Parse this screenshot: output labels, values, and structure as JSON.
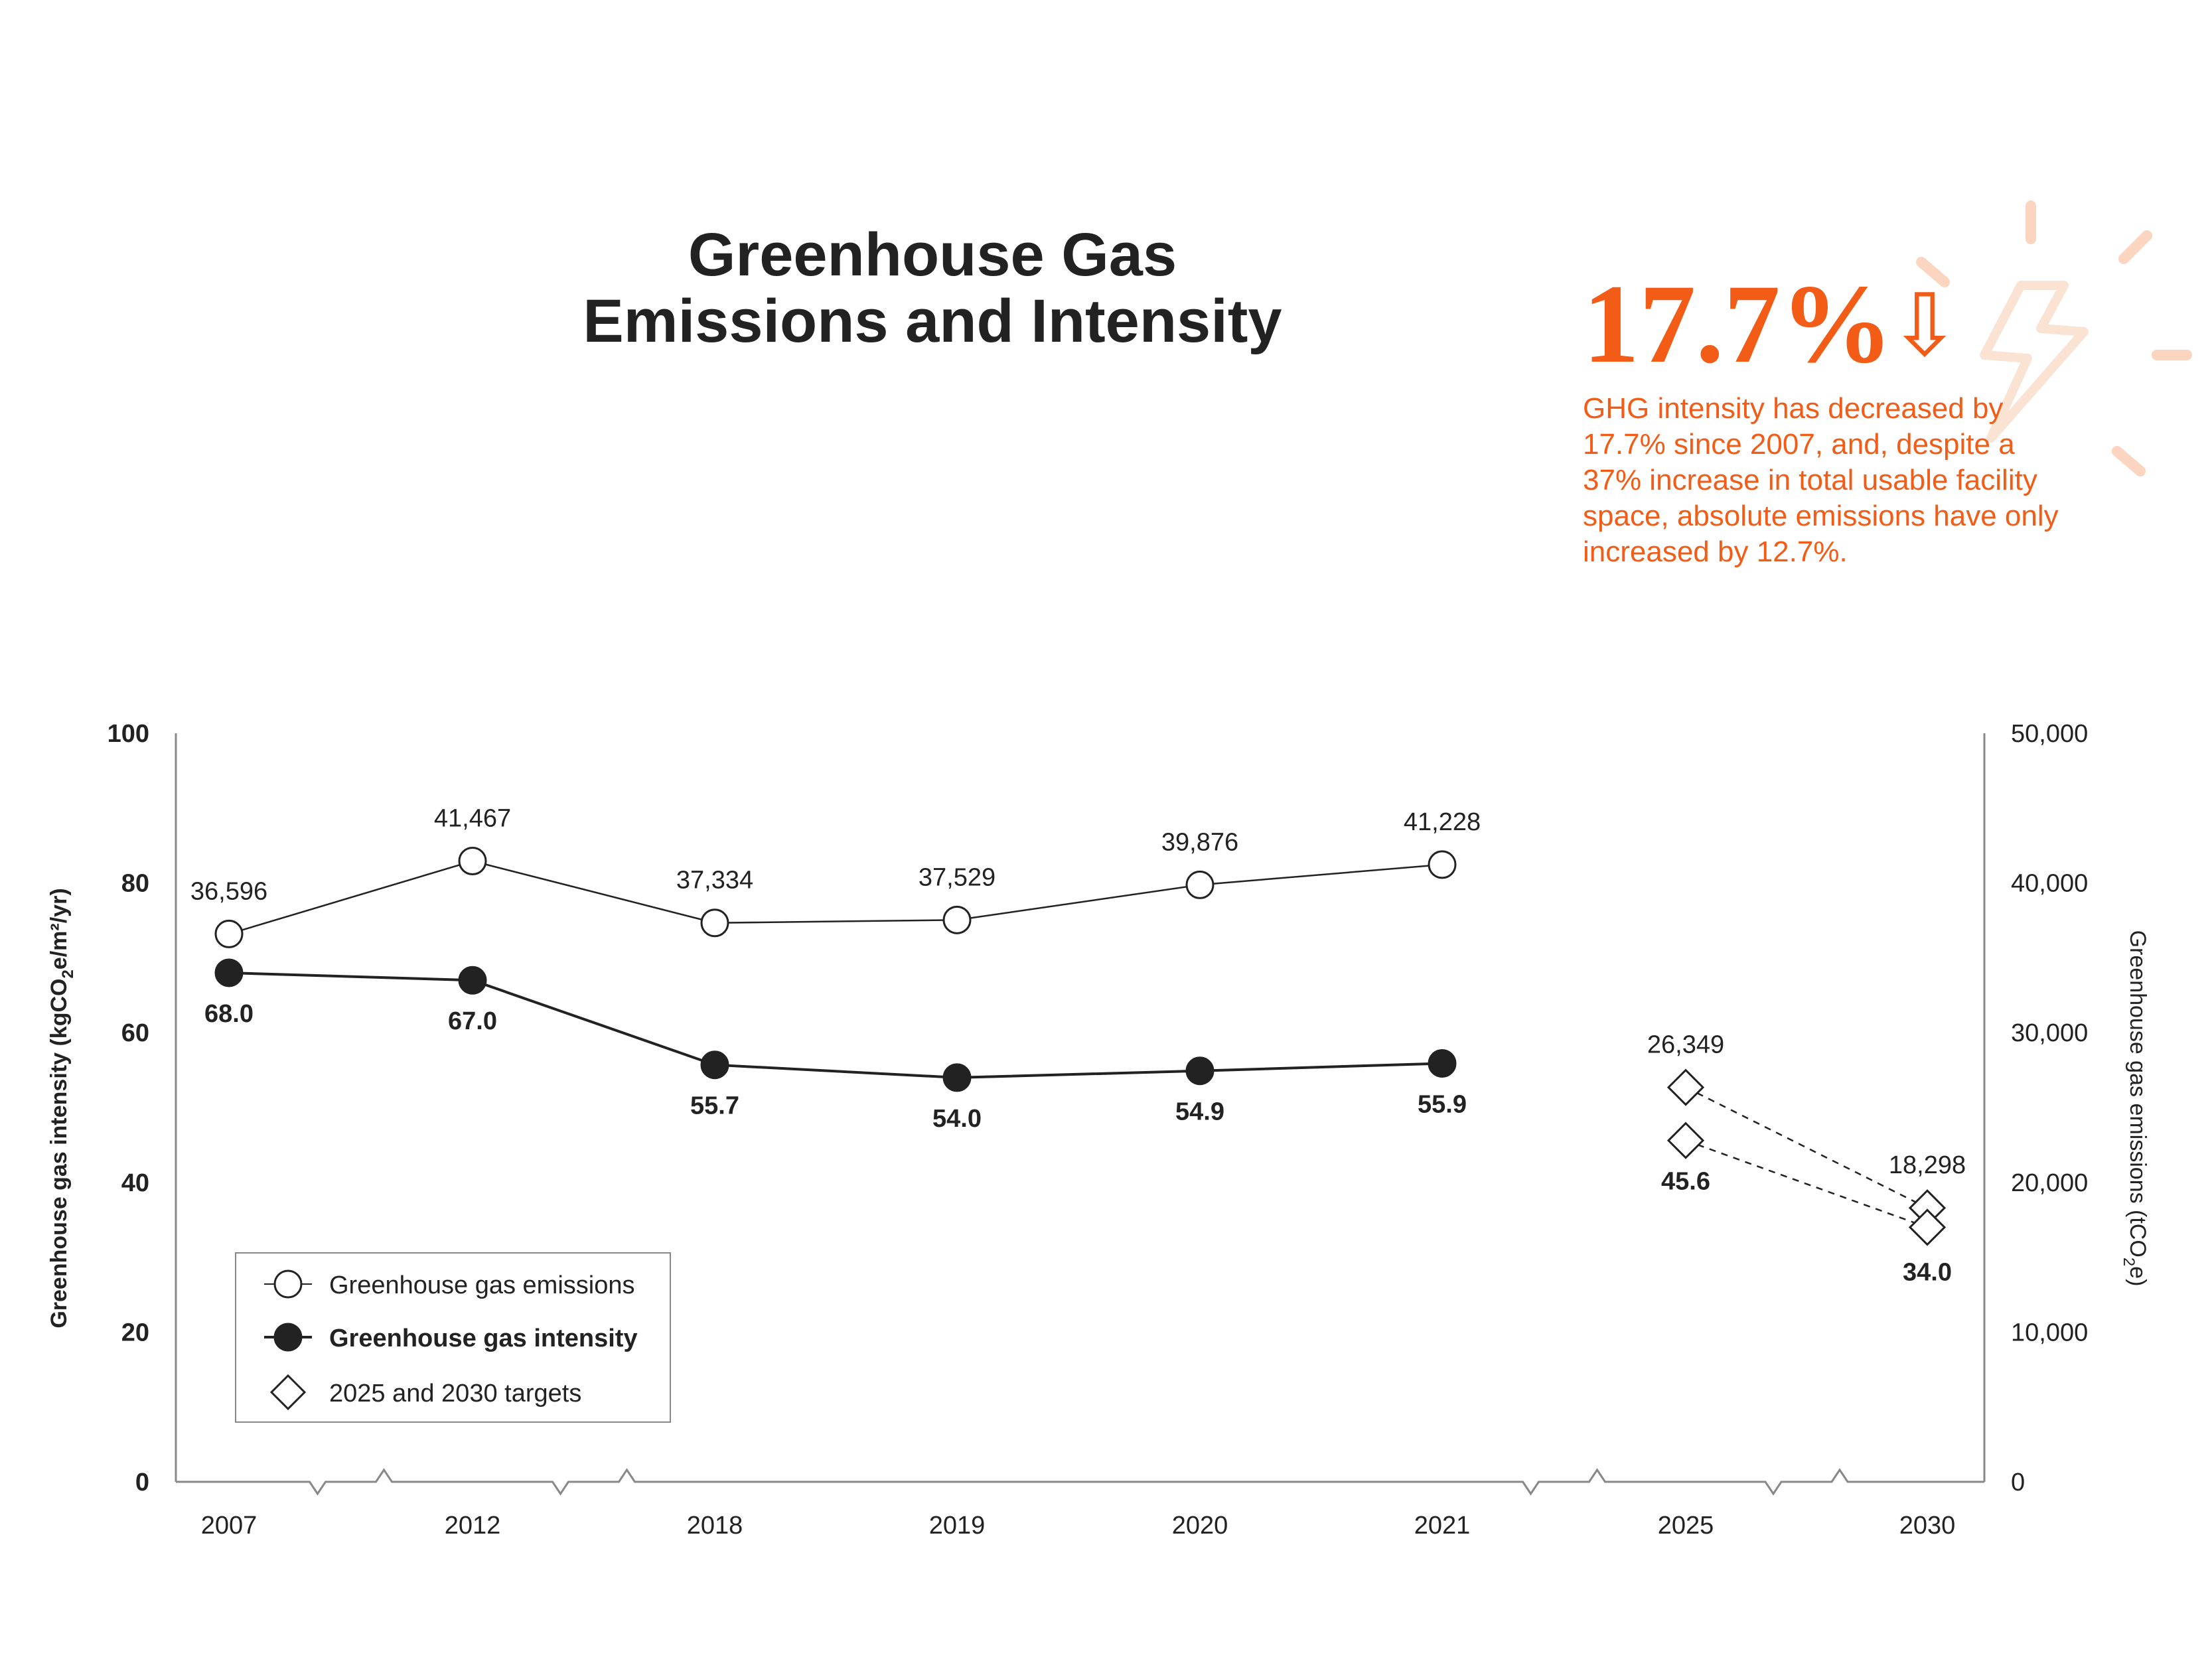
{
  "page": {
    "title_line1": "Greenhouse Gas",
    "title_line2": "Emissions and Intensity"
  },
  "callout": {
    "stat": "17.7%",
    "stat_arrow": "⇩",
    "lines": [
      "GHG intensity has decreased by",
      "17.7% since 2007, and, despite a",
      "37% increase in total usable facility",
      "space, absolute emissions have only",
      "increased by 12.7%."
    ],
    "color": "#f25c17",
    "accent_color": "#fbe3d4"
  },
  "chart_data": {
    "type": "line",
    "categories": [
      "2007",
      "2012",
      "2018",
      "2019",
      "2020",
      "2021",
      "2025",
      "2030"
    ],
    "axis_breaks_after": [
      "2007",
      "2012",
      "2021",
      "2025"
    ],
    "left_axis": {
      "label_main": "Greenhouse gas intensity (kgCO",
      "label_sub": "2",
      "label_end": "e/m²/yr)",
      "ticks": [
        "0",
        "20",
        "40",
        "60",
        "80",
        "100"
      ],
      "ylim": [
        0,
        100
      ]
    },
    "right_axis": {
      "label_main": "Greenhouse gas emissions (tCO",
      "label_sub": "2",
      "label_end": "e)",
      "ticks": [
        "0",
        "10,000",
        "20,000",
        "30,000",
        "40,000",
        "50,000"
      ],
      "ylim": [
        0,
        50000
      ]
    },
    "series": [
      {
        "name": "Greenhouse gas emissions",
        "axis": "right",
        "marker": "open-circle",
        "values": [
          36596,
          41467,
          37334,
          37529,
          39876,
          41228,
          26349,
          18298
        ],
        "labels": [
          "36,596",
          "41,467",
          "37,334",
          "37,529",
          "39,876",
          "41,228",
          "26,349",
          "18,298"
        ],
        "target_from_index": 6
      },
      {
        "name": "Greenhouse gas intensity",
        "axis": "left",
        "marker": "filled-circle",
        "values": [
          68.0,
          67.0,
          55.7,
          54.0,
          54.9,
          55.9,
          45.6,
          34.0
        ],
        "labels": [
          "68.0",
          "67.0",
          "55.7",
          "54.0",
          "54.9",
          "55.9",
          "45.6",
          "34.0"
        ],
        "target_from_index": 6
      }
    ],
    "legend": {
      "placement": "bottom-left",
      "items": [
        {
          "label": "Greenhouse gas emissions",
          "marker": "open-circle"
        },
        {
          "label": "Greenhouse gas intensity",
          "marker": "filled-circle"
        },
        {
          "label": "2025 and 2030 targets",
          "marker": "open-diamond"
        }
      ]
    },
    "grid": false
  }
}
